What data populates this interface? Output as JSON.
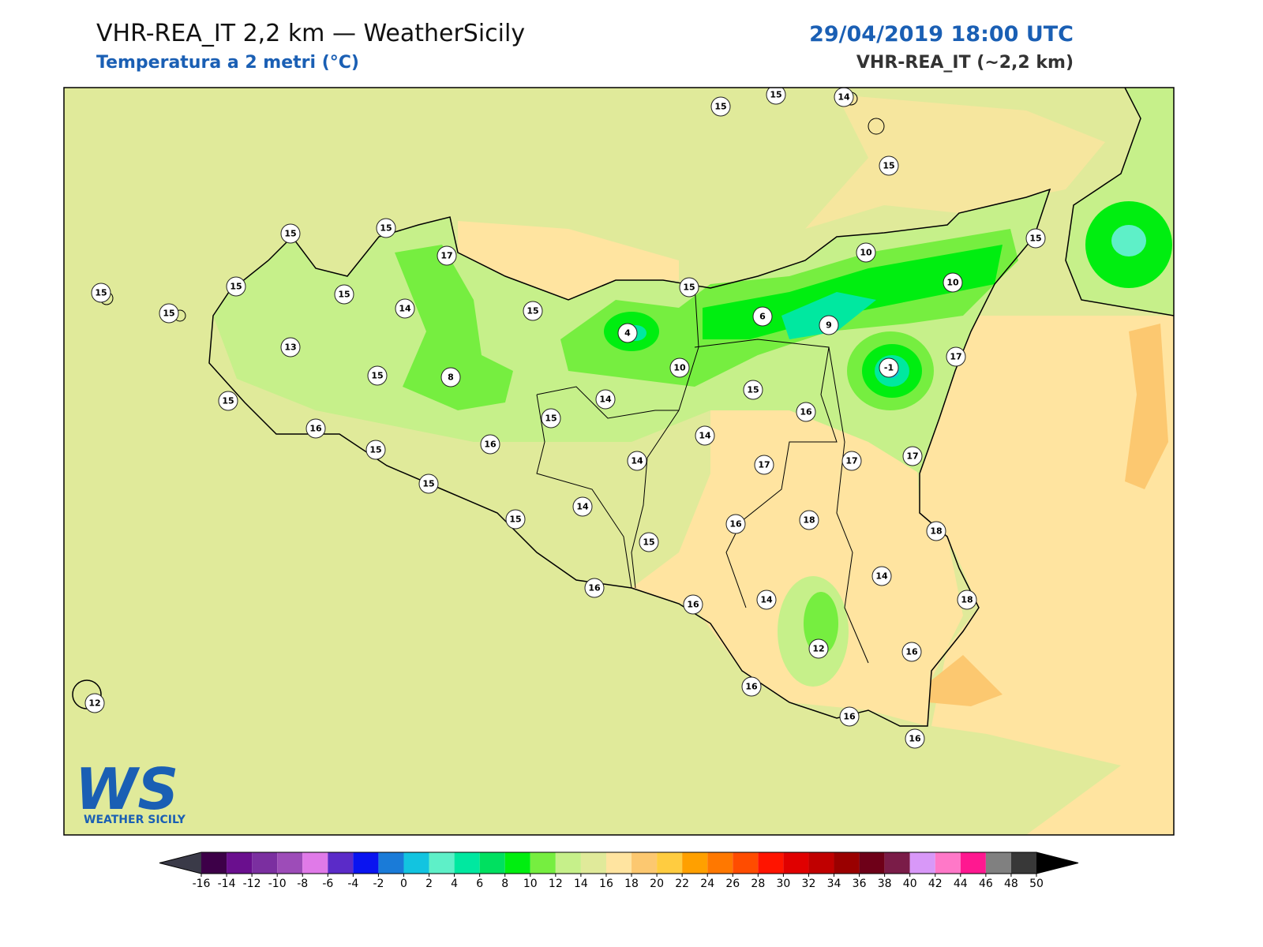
{
  "header": {
    "title": "VHR-REA_IT 2,2 km — WeatherSicily",
    "subtitle": "Temperatura a 2 metri (°C)",
    "datetime": "29/04/2019 18:00 UTC",
    "model": "VHR-REA_IT (~2,2 km)"
  },
  "stations": [
    {
      "value": 15
    },
    {
      "value": 15
    },
    {
      "value": 14
    },
    {
      "value": 15
    },
    {
      "value": 15
    },
    {
      "value": 15
    },
    {
      "value": 17
    },
    {
      "value": 15
    },
    {
      "value": 15
    },
    {
      "value": 15
    },
    {
      "value": 15
    },
    {
      "value": 15
    },
    {
      "value": 14
    },
    {
      "value": 15
    },
    {
      "value": 15
    },
    {
      "value": 10
    },
    {
      "value": 10
    },
    {
      "value": 6
    },
    {
      "value": 9
    },
    {
      "value": 4
    },
    {
      "value": 13
    },
    {
      "value": -1
    },
    {
      "value": 17
    },
    {
      "value": 10
    },
    {
      "value": 8
    },
    {
      "value": 15
    },
    {
      "value": 15
    },
    {
      "value": 14
    },
    {
      "value": 15
    },
    {
      "value": 16
    },
    {
      "value": 15
    },
    {
      "value": 16
    },
    {
      "value": 16
    },
    {
      "value": 14
    },
    {
      "value": 15
    },
    {
      "value": 14
    },
    {
      "value": 17
    },
    {
      "value": 17
    },
    {
      "value": 17
    },
    {
      "value": 15
    },
    {
      "value": 14
    },
    {
      "value": 15
    },
    {
      "value": 16
    },
    {
      "value": 18
    },
    {
      "value": 18
    },
    {
      "value": 15
    },
    {
      "value": 14
    },
    {
      "value": 16
    },
    {
      "value": 16
    },
    {
      "value": 14
    },
    {
      "value": 18
    },
    {
      "value": 12
    },
    {
      "value": 16
    },
    {
      "value": 16
    },
    {
      "value": 12
    },
    {
      "value": 16
    },
    {
      "value": 16
    }
  ],
  "colorbar": {
    "ticks": [
      -16,
      -14,
      -12,
      -10,
      -8,
      -6,
      -4,
      -2,
      0,
      2,
      4,
      6,
      8,
      10,
      12,
      14,
      16,
      18,
      20,
      22,
      24,
      26,
      28,
      30,
      32,
      34,
      36,
      38,
      40,
      42,
      44,
      46,
      48,
      50
    ],
    "colors": [
      "#3d0048",
      "#6a0f8e",
      "#7b2fa0",
      "#9d4cb8",
      "#e07ae8",
      "#5b2bc8",
      "#0a14f0",
      "#1a7bd8",
      "#12c4e0",
      "#5ef0c8",
      "#00e8a0",
      "#00e060",
      "#00ee10",
      "#76ee40",
      "#c6f08a",
      "#e0ea9a",
      "#ffe4a0",
      "#fcc870",
      "#ffcc40",
      "#ffa000",
      "#ff7800",
      "#ff4c00",
      "#ff1400",
      "#e00000",
      "#c00000",
      "#9a0000",
      "#6e0018",
      "#7a1c48",
      "#d898f8",
      "#ff78c8",
      "#ff1890",
      "#808080",
      "#383838"
    ],
    "under_color": "#3a3a48",
    "over_color": "#000000"
  },
  "logo": {
    "mark": "WS",
    "name": "WEATHER SICILY"
  }
}
